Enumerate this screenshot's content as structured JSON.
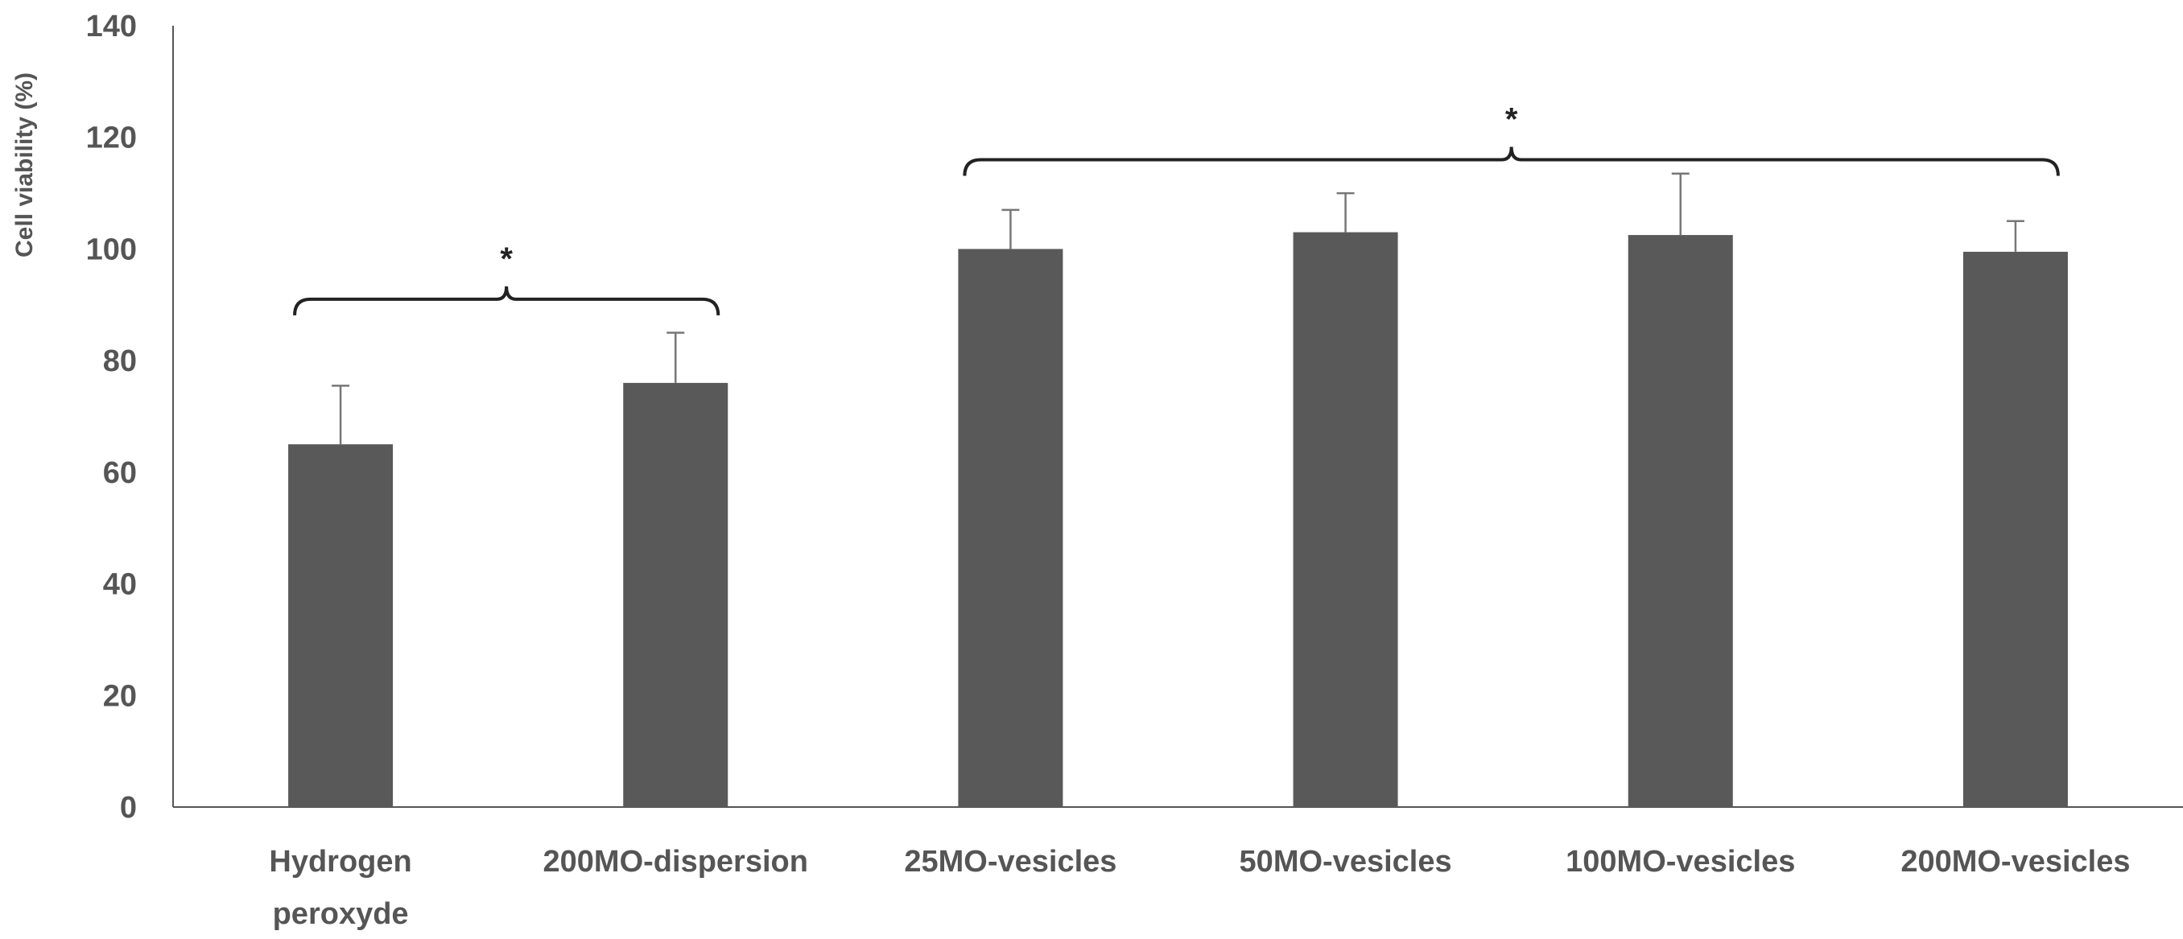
{
  "chart_data": {
    "type": "bar",
    "title": "",
    "xlabel": "",
    "ylabel": "Cell viability (%)",
    "ylim": [
      0,
      140
    ],
    "yticks": [
      0,
      20,
      40,
      60,
      80,
      100,
      120,
      140
    ],
    "categories": [
      [
        "Hydrogen",
        "peroxyde"
      ],
      [
        "200MO-dispersion"
      ],
      [
        "25MO-vesicles"
      ],
      [
        "50MO-vesicles"
      ],
      [
        "100MO-vesicles"
      ],
      [
        "200MO-vesicles"
      ]
    ],
    "values": [
      65,
      76,
      100,
      103,
      102.5,
      99.5
    ],
    "errors": [
      10.5,
      9,
      7,
      7,
      11,
      5.5
    ],
    "bar_color": "#595959",
    "axis_color": "#555555",
    "significance": [
      {
        "from": 0,
        "to": 1,
        "label": "*",
        "level": 91
      },
      {
        "from": 2,
        "to": 5,
        "label": "*",
        "level": 116
      }
    ]
  }
}
